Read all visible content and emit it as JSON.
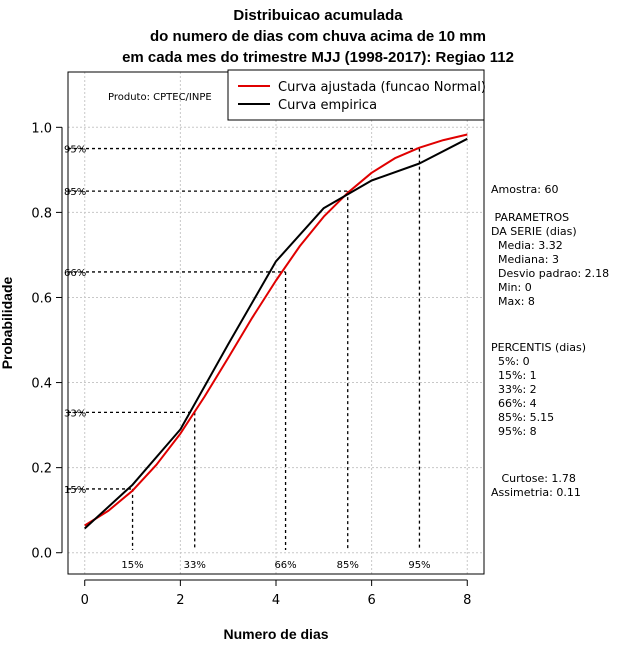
{
  "chart_data": {
    "type": "line",
    "title_lines": [
      "Distribuicao acumulada",
      "do numero de dias com chuva acima de 10 mm",
      "em cada mes do trimestre MJJ (1998-2017): Regiao 112"
    ],
    "xlabel": "Numero de dias",
    "ylabel": "Probabilidade",
    "xlim": [
      -0.35,
      8.35
    ],
    "ylim": [
      -0.05,
      1.13
    ],
    "xticks": [
      0,
      2,
      4,
      6,
      8
    ],
    "yticks": [
      0.0,
      0.2,
      0.4,
      0.6,
      0.8,
      1.0
    ],
    "xtick_labels": [
      "0",
      "2",
      "4",
      "6",
      "8"
    ],
    "ytick_labels": [
      "0.0",
      "0.2",
      "0.4",
      "0.6",
      "0.8",
      "1.0"
    ],
    "grid": true,
    "product_label": "Produto: CPTEC/INPE",
    "legend": {
      "position": "top-right",
      "entries": [
        {
          "label": "Curva ajustada (funcao Normal)",
          "color": "#e00000"
        },
        {
          "label": "Curva empirica",
          "color": "#000000"
        }
      ]
    },
    "series": [
      {
        "name": "Curva ajustada (funcao Normal)",
        "color": "#e00000",
        "x": [
          0,
          0.5,
          1,
          1.5,
          2,
          2.5,
          3,
          3.5,
          4,
          4.5,
          5,
          5.5,
          6,
          6.5,
          7,
          7.5,
          8
        ],
        "y": [
          0.064,
          0.099,
          0.146,
          0.207,
          0.28,
          0.366,
          0.458,
          0.552,
          0.64,
          0.721,
          0.79,
          0.846,
          0.893,
          0.928,
          0.952,
          0.97,
          0.983
        ]
      },
      {
        "name": "Curva empirica",
        "color": "#000000",
        "x": [
          0,
          1,
          2,
          3,
          4,
          5,
          6,
          7,
          8
        ],
        "y": [
          0.057,
          0.16,
          0.29,
          0.49,
          0.685,
          0.81,
          0.875,
          0.915,
          0.973
        ]
      }
    ],
    "percentile_guides": [
      {
        "label": "15%",
        "prob": 0.15,
        "x": 1.0
      },
      {
        "label": "33%",
        "prob": 0.33,
        "x": 2.3
      },
      {
        "label": "66%",
        "prob": 0.66,
        "x": 4.2
      },
      {
        "label": "85%",
        "prob": 0.85,
        "x": 5.5
      },
      {
        "label": "95%",
        "prob": 0.95,
        "x": 7.0
      }
    ]
  },
  "side_panel": {
    "sample": "Amostra: 60",
    "params_title": " PARAMETROS",
    "params_subtitle": "DA SERIE (dias)",
    "params": [
      "  Media: 3.32",
      "  Mediana: 3",
      "  Desvio padrao: 2.18",
      "  Min: 0",
      "  Max: 8"
    ],
    "percentis_title": "PERCENTIS (dias)",
    "percentis": [
      "  5%: 0",
      "  15%: 1",
      "  33%: 2",
      "  66%: 4",
      "  85%: 5.15",
      "  95%: 8"
    ],
    "curtose": "   Curtose: 1.78",
    "assimetria": "Assimetria: 0.11"
  }
}
